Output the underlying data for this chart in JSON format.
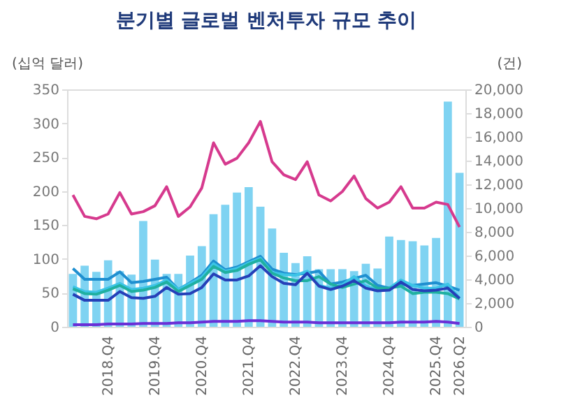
{
  "chart_data": {
    "type": "bar",
    "title": "분기별 글로벌 벤처투자 규모 추이",
    "ylabel": "(십억 달러)",
    "y2label": "(건)",
    "categories": [
      null,
      null,
      null,
      "2018.Q4",
      null,
      null,
      null,
      "2019.Q4",
      null,
      null,
      null,
      "2020.Q4",
      null,
      null,
      null,
      "2021.Q4",
      null,
      null,
      null,
      "2022.Q4",
      null,
      null,
      null,
      "2023.Q4",
      null,
      null,
      null,
      "2024.Q4",
      null,
      null,
      null,
      "2025.Q4",
      null,
      "2026.Q2"
    ],
    "series": [
      {
        "color": "#7fd3f2",
        "values": [
          78,
          90,
          81,
          98,
          82,
          77,
          156,
          99,
          78,
          78,
          105,
          119,
          166,
          180,
          198,
          206,
          177,
          145,
          109,
          94,
          104,
          85,
          85,
          85,
          82,
          93,
          86,
          133,
          128,
          126,
          120,
          131,
          332,
          227
        ]
      },
      {
        "type": "line",
        "axis": "y2",
        "color": "#d63a8e",
        "values": [
          11100,
          9300,
          9100,
          9500,
          11300,
          9500,
          9700,
          10200,
          11800,
          9300,
          10100,
          11700,
          15500,
          13700,
          14200,
          15500,
          17300,
          13900,
          12800,
          12400,
          13900,
          11100,
          10600,
          11400,
          12700,
          10800,
          10000,
          10500,
          11800,
          10000,
          10000,
          10500,
          10300,
          8400
        ]
      },
      {
        "type": "line",
        "color": "#1f8fd0",
        "values": [
          86,
          70,
          70,
          70,
          81,
          65,
          67,
          70,
          73,
          55,
          65,
          76,
          97,
          84,
          88,
          96,
          104,
          85,
          79,
          77,
          79,
          82,
          63,
          66,
          71,
          76,
          61,
          57,
          63,
          61,
          63,
          65,
          60,
          54
        ]
      },
      {
        "type": "line",
        "color": "#3cc4e6",
        "values": [
          59,
          52,
          51,
          57,
          64,
          55,
          57,
          61,
          69,
          55,
          64,
          73,
          93,
          82,
          86,
          94,
          101,
          80,
          77,
          76,
          82,
          61,
          57,
          62,
          74,
          60,
          55,
          57,
          69,
          61,
          57,
          57,
          63,
          42
        ]
      },
      {
        "type": "line",
        "color": "#20b0a0",
        "values": [
          56,
          49,
          48,
          54,
          61,
          52,
          54,
          58,
          66,
          52,
          61,
          70,
          89,
          80,
          83,
          92,
          99,
          79,
          72,
          68,
          68,
          74,
          63,
          58,
          63,
          68,
          57,
          57,
          60,
          49,
          51,
          51,
          49,
          41
        ]
      },
      {
        "type": "line",
        "color": "#2540b8",
        "values": [
          48,
          39,
          39,
          39,
          52,
          43,
          42,
          45,
          58,
          48,
          49,
          58,
          78,
          69,
          69,
          75,
          90,
          74,
          64,
          62,
          79,
          60,
          55,
          60,
          68,
          57,
          53,
          54,
          66,
          55,
          53,
          54,
          57,
          42
        ]
      },
      {
        "type": "line",
        "color": "#6a2fd6",
        "values": [
          3,
          3,
          3,
          4,
          4,
          4,
          5,
          5,
          5,
          6,
          6,
          7,
          8,
          8,
          8,
          9,
          9,
          8,
          7,
          7,
          7,
          6,
          6,
          6,
          6,
          6,
          6,
          6,
          7,
          7,
          7,
          8,
          7,
          5
        ]
      }
    ],
    "ylim": [
      0,
      350
    ],
    "yticks": [
      0,
      50,
      100,
      150,
      200,
      250,
      300,
      350
    ],
    "y2lim": [
      0,
      20000
    ],
    "y2ticks": [
      0,
      {
        "value": 2000,
        "label": "2,000"
      },
      {
        "value": 4000,
        "label": "4,000"
      },
      {
        "value": 6000,
        "label": "6,000"
      },
      {
        "value": 8000,
        "label": "8,000"
      },
      {
        "value": 10000,
        "label": "10,000"
      },
      {
        "value": 12000,
        "label": "12,000"
      },
      {
        "value": 14000,
        "label": "14,000"
      },
      {
        "value": 16000,
        "label": "16,000"
      },
      {
        "value": 18000,
        "label": "18,000"
      },
      {
        "value": 20000,
        "label": "20,000"
      }
    ],
    "grid": false,
    "legend": false
  }
}
